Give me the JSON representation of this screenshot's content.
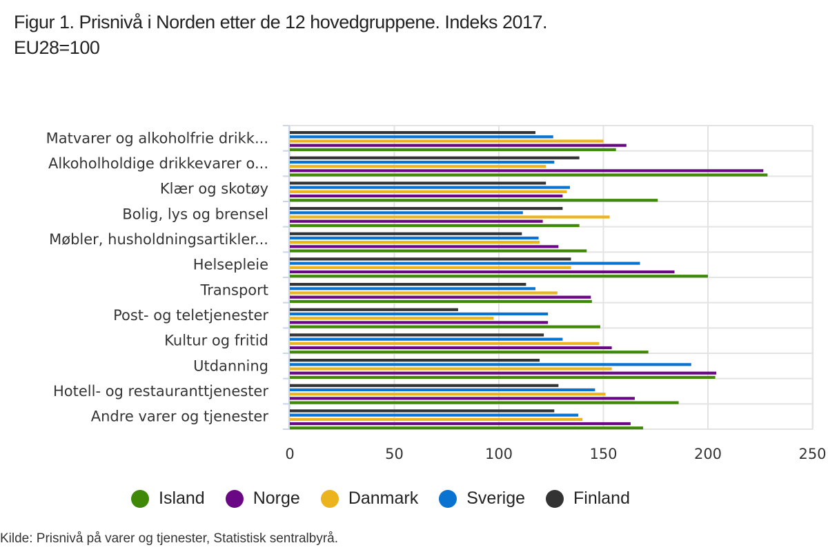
{
  "chart_data": {
    "type": "bar",
    "orientation": "horizontal",
    "title": "Figur 1. Prisnivå i Norden etter de 12 hovedgruppene. Indeks 2017. EU28=100",
    "title_lines": [
      "Figur 1. Prisnivå i Norden etter de 12 hovedgruppene. Indeks 2017.",
      "EU28=100"
    ],
    "xlabel": "",
    "ylabel": "",
    "xlim": [
      0,
      250
    ],
    "xticks": [
      0,
      50,
      100,
      150,
      200,
      250
    ],
    "xtick_labels": [
      "0",
      "50",
      "100",
      "150",
      "200",
      "250"
    ],
    "grid": true,
    "legend_position": "bottom",
    "categories": [
      "Matvarer og alkoholfrie drikk...",
      "Alkoholholdige drikkevarer o...",
      "Klær og skotøy",
      "Bolig, lys og brensel",
      "Møbler, husholdningsartikler...",
      "Helsepleie",
      "Transport",
      "Post- og teletjenester",
      "Kultur og fritid",
      "Utdanning",
      "Hotell- og restauranttjenester",
      "Andre varer og tjenester"
    ],
    "series": [
      {
        "name": "Finland",
        "color": "#333333",
        "values": [
          117.5,
          138.5,
          122.5,
          130.5,
          111,
          134.5,
          113,
          80.5,
          121.5,
          119.5,
          128.5,
          126.5
        ]
      },
      {
        "name": "Sverige",
        "color": "#0973d1",
        "values": [
          126,
          126.5,
          134,
          111.5,
          119,
          167.5,
          117.5,
          123.5,
          130.5,
          192,
          146,
          138
        ]
      },
      {
        "name": "Danmark",
        "color": "#ebb31e",
        "values": [
          150,
          122.5,
          132.5,
          153,
          119.5,
          134.5,
          128,
          97.5,
          148,
          154,
          151,
          140
        ]
      },
      {
        "name": "Norge",
        "color": "#6a0785",
        "values": [
          161,
          226.5,
          130.5,
          121,
          128.5,
          184,
          144,
          123.5,
          154,
          204,
          165,
          163
        ]
      },
      {
        "name": "Island",
        "color": "#3f8808",
        "values": [
          156,
          228.5,
          176,
          138.5,
          142,
          200,
          144.5,
          148.5,
          171.5,
          203.5,
          186,
          169
        ]
      }
    ]
  },
  "legend": [
    {
      "name": "Island",
      "color": "#3f8808"
    },
    {
      "name": "Norge",
      "color": "#6a0785"
    },
    {
      "name": "Danmark",
      "color": "#ebb31e"
    },
    {
      "name": "Sverige",
      "color": "#0973d1"
    },
    {
      "name": "Finland",
      "color": "#333333"
    }
  ],
  "source": "Kilde: Prisnivå på varer og tjenester, Statistisk sentralbyrå."
}
